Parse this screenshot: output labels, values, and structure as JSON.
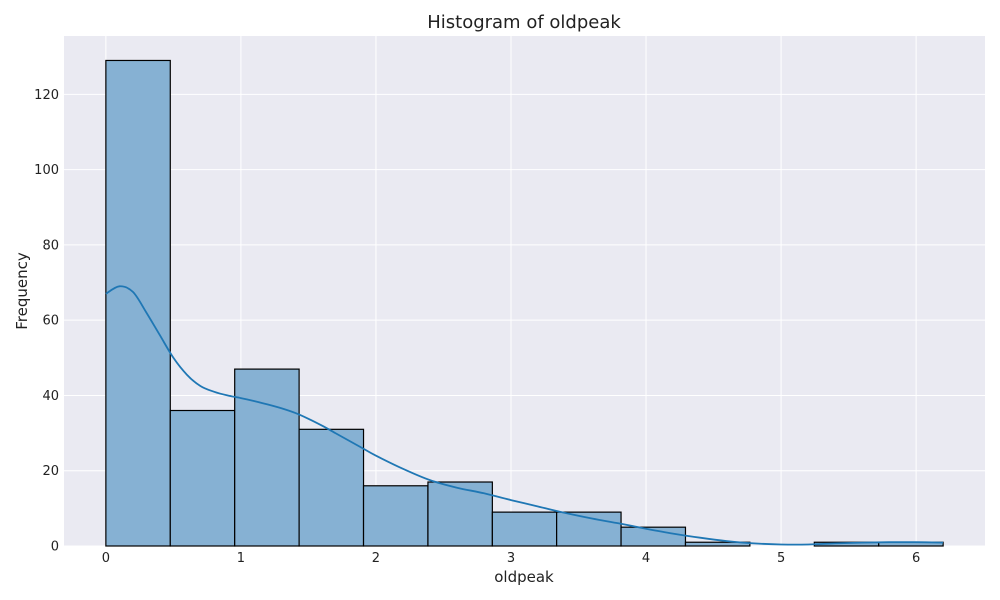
{
  "chart_data": {
    "type": "bar",
    "subtype": "histogram",
    "title": "Histogram of oldpeak",
    "xlabel": "oldpeak",
    "ylabel": "Frequency",
    "xlim": [
      -0.31,
      6.51
    ],
    "ylim": [
      0,
      135.5
    ],
    "xticks": [
      0,
      1,
      2,
      3,
      4,
      5,
      6
    ],
    "yticks": [
      0,
      20,
      40,
      60,
      80,
      100,
      120
    ],
    "grid": true,
    "bin_edges": [
      0,
      0.477,
      0.954,
      1.431,
      1.908,
      2.385,
      2.862,
      3.338,
      3.815,
      4.292,
      4.769,
      5.246,
      5.723,
      6.2
    ],
    "counts": [
      129,
      36,
      47,
      31,
      16,
      17,
      9,
      9,
      5,
      1,
      0,
      1,
      1
    ],
    "kde": {
      "x": [
        0,
        0.1,
        0.2,
        0.3,
        0.4,
        0.5,
        0.6,
        0.7,
        0.8,
        0.9,
        1.0,
        1.1,
        1.2,
        1.3,
        1.4,
        1.5,
        1.6,
        1.7,
        1.8,
        1.9,
        2.0,
        2.2,
        2.4,
        2.6,
        2.8,
        3.0,
        3.2,
        3.4,
        3.6,
        3.8,
        4.0,
        4.2,
        4.4,
        4.6,
        4.8,
        5.0,
        5.2,
        5.4,
        5.6,
        5.8,
        6.0,
        6.2
      ],
      "y": [
        67,
        69,
        67.5,
        62,
        56,
        50,
        45.5,
        42.5,
        41,
        40,
        39.3,
        38.5,
        37.6,
        36.6,
        35.4,
        33.8,
        32,
        30,
        28,
        26,
        24,
        20.5,
        17.5,
        15.5,
        14,
        12.2,
        10.5,
        8.8,
        7.3,
        6,
        4.6,
        3.3,
        2.2,
        1.3,
        0.7,
        0.4,
        0.4,
        0.7,
        0.9,
        1.0,
        1.0,
        0.9
      ]
    },
    "colors": {
      "bar_fill": "#86b1d3",
      "bar_edge": "#000000",
      "kde_line": "#1f77b4",
      "plot_background": "#eaeaf2",
      "grid": "#ffffff"
    }
  }
}
